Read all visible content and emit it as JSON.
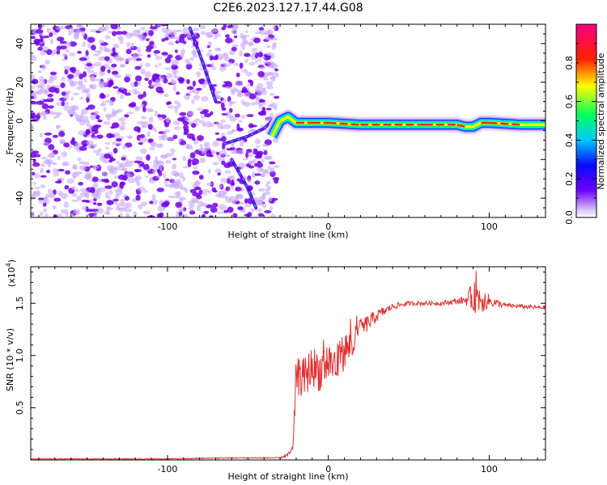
{
  "title": "C2E6.2023.127.17.44.G08",
  "colors": {
    "snr_line": "#e03030",
    "speckle_dark": "#7000e8",
    "speckle_light": "#c8a8f8",
    "band_red": "#ff2020",
    "colormap": [
      "#ffffff",
      "#6a00ff",
      "#0a0aff",
      "#00e0ff",
      "#00ff40",
      "#ffff00",
      "#ff2000",
      "#ff0080"
    ]
  },
  "chart_data": [
    {
      "type": "heatmap",
      "name": "spectrogram",
      "xlabel": "Height of straight line (km)",
      "ylabel": "Frequency (Hz)",
      "xlim": [
        -185,
        135
      ],
      "ylim": [
        -50,
        50
      ],
      "xticks": [
        -100,
        0,
        100
      ],
      "xtick_labels": [
        "-100",
        "0",
        "100"
      ],
      "yticks": [
        -40,
        -20,
        0,
        20,
        40
      ],
      "ytick_labels": [
        "-40",
        "-20",
        "0",
        "20",
        "40"
      ],
      "noise_region_x": [
        -185,
        -32
      ],
      "signal_band": {
        "x": [
          -35,
          -30,
          -25,
          -20,
          -10,
          0,
          20,
          60,
          80,
          85,
          90,
          95,
          100,
          120,
          135
        ],
        "freq": [
          -8,
          0,
          2,
          -1,
          -1,
          -1,
          -2,
          -2,
          -2,
          -3,
          -3,
          -1,
          -1,
          -2,
          -2
        ],
        "normalized_amplitude": [
          0.3,
          0.7,
          0.8,
          0.85,
          0.9,
          0.95,
          0.9,
          0.95,
          0.85,
          0.9,
          0.7,
          0.85,
          0.9,
          0.9,
          0.6
        ]
      },
      "streaks": [
        {
          "x": [
            -86,
            -78,
            -70
          ],
          "freq": [
            48,
            30,
            10
          ]
        },
        {
          "x": [
            -65,
            -50,
            -40,
            -35
          ],
          "freq": [
            -12,
            -8,
            -4,
            0
          ]
        },
        {
          "x": [
            -60,
            -50,
            -45
          ],
          "freq": [
            -20,
            -35,
            -45
          ]
        }
      ],
      "colorbar": {
        "label": "Normalized spectral amplitude",
        "range": [
          0,
          1
        ],
        "ticks": [
          0.0,
          0.2,
          0.4,
          0.6,
          0.8
        ],
        "tick_labels": [
          "0.0",
          "0.2",
          "0.4",
          "0.6",
          "0.8"
        ]
      }
    },
    {
      "type": "line",
      "name": "SNR",
      "xlabel": "Height of straight line (km)",
      "ylabel": "SNR (10 * v/v)",
      "y_multiplier_label": "(x10",
      "y_multiplier_exp": "4",
      "xlim": [
        -185,
        135
      ],
      "ylim": [
        0,
        1.85
      ],
      "xticks": [
        -100,
        0,
        100
      ],
      "xtick_labels": [
        "-100",
        "0",
        "100"
      ],
      "yticks": [
        0.5,
        1.0,
        1.5
      ],
      "ytick_labels": [
        "0.5",
        "1.0",
        "1.5"
      ],
      "series": [
        {
          "x": [
            -185,
            -150,
            -100,
            -60,
            -30,
            -25,
            -22,
            -20,
            -15,
            -10,
            -5,
            0,
            5,
            10,
            15,
            20,
            30,
            40,
            50,
            60,
            70,
            80,
            85,
            90,
            95,
            100,
            110,
            120,
            130,
            135
          ],
          "values": [
            0.01,
            0.01,
            0.01,
            0.02,
            0.02,
            0.05,
            0.1,
            0.8,
            0.78,
            0.9,
            0.85,
            0.95,
            0.9,
            1.05,
            1.1,
            1.25,
            1.38,
            1.47,
            1.5,
            1.5,
            1.5,
            1.52,
            1.53,
            1.56,
            1.55,
            1.52,
            1.48,
            1.47,
            1.46,
            1.46
          ],
          "noise": [
            0.004,
            0.004,
            0.005,
            0.005,
            0.006,
            0.02,
            0.05,
            0.18,
            0.2,
            0.2,
            0.2,
            0.22,
            0.2,
            0.18,
            0.15,
            0.1,
            0.06,
            0.03,
            0.02,
            0.02,
            0.02,
            0.03,
            0.04,
            0.15,
            0.15,
            0.06,
            0.02,
            0.02,
            0.02,
            0.02
          ]
        }
      ]
    }
  ]
}
